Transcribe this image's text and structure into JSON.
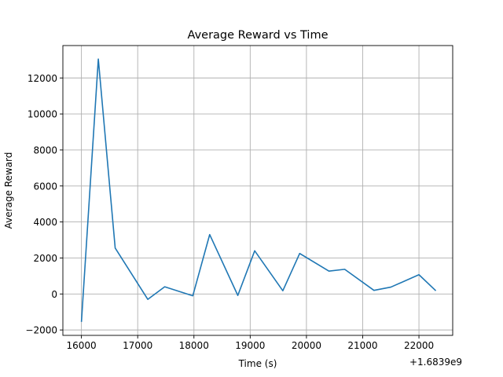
{
  "chart_data": {
    "type": "line",
    "title": "Average Reward vs Time",
    "xlabel": "Time (s)",
    "ylabel": "Average Reward",
    "x_offset_label": "+1.6839e9",
    "xlim": [
      15670,
      22600
    ],
    "ylim": [
      -2300,
      13800
    ],
    "xticks": [
      16000,
      17000,
      18000,
      19000,
      20000,
      21000,
      22000
    ],
    "yticks": [
      -2000,
      0,
      2000,
      4000,
      6000,
      8000,
      10000,
      12000
    ],
    "grid": true,
    "color": "#1f77b4",
    "series": [
      {
        "x": [
          16000,
          16300,
          16600,
          17180,
          17480,
          17980,
          18280,
          18780,
          19080,
          19580,
          19880,
          20400,
          20680,
          21200,
          21500,
          22000,
          22300
        ],
        "y": [
          -1550,
          13050,
          2550,
          -300,
          400,
          -100,
          3300,
          -80,
          2400,
          180,
          2250,
          1270,
          1370,
          200,
          380,
          1070,
          180
        ]
      }
    ]
  }
}
